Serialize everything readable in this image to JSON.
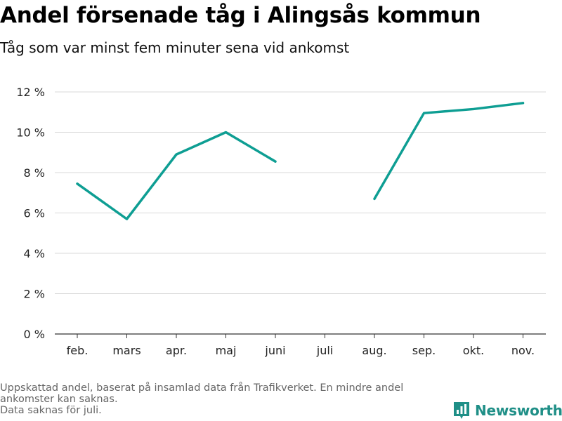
{
  "title": "Andel försenade tåg i Alingsås kommun",
  "subtitle": "Tåg som var minst fem minuter sena vid ankomst",
  "footnote": [
    "Uppskattad andel, baserat på insamlad data från Trafikverket. En mindre andel",
    "ankomster kan saknas.",
    "Data saknas för juli."
  ],
  "brand": {
    "name": "Newsworthy",
    "color": "#1f8f87",
    "icon": "bar-chart-logo-icon"
  },
  "chart_data": {
    "type": "line",
    "categories": [
      "feb.",
      "mars",
      "apr.",
      "maj",
      "juni",
      "juli",
      "aug.",
      "sep.",
      "okt.",
      "nov."
    ],
    "series": [
      {
        "values": [
          7.45,
          5.7,
          8.9,
          10.0,
          8.55,
          null,
          6.7,
          10.95,
          11.15,
          11.45
        ],
        "color": "#0e9e93"
      }
    ],
    "y_ticks": [
      0,
      2,
      4,
      6,
      8,
      10,
      12
    ],
    "y_tick_labels": [
      "0 %",
      "2 %",
      "4 %",
      "6 %",
      "8 %",
      "10 %",
      "12 %"
    ],
    "ylim": [
      0,
      12
    ],
    "grid": true
  }
}
